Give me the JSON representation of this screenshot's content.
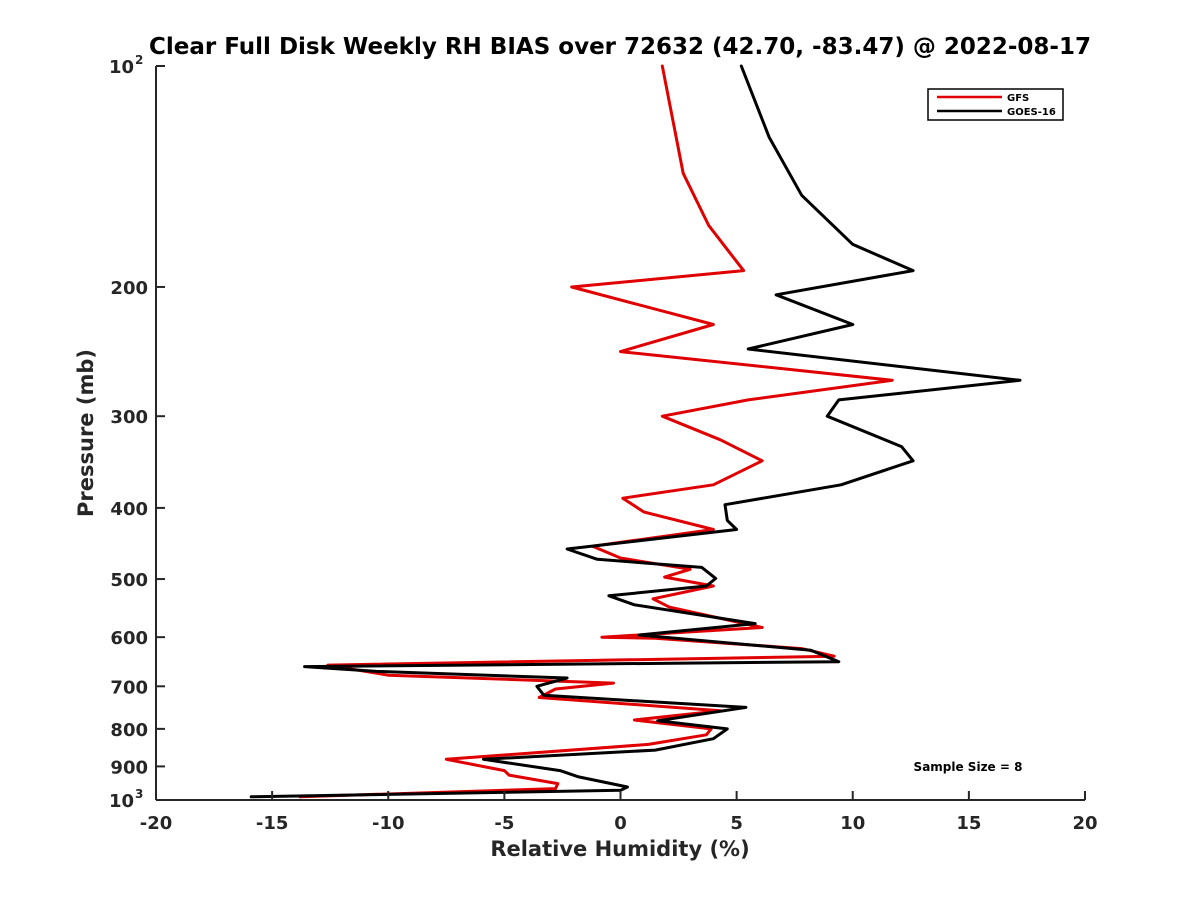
{
  "chart_data": {
    "type": "line",
    "title": "Clear Full Disk Weekly RH BIAS over 72632 (42.70, -83.47) @ 2022-08-17",
    "xlabel": "Relative Humidity (%)",
    "ylabel": "Pressure (mb)",
    "xlim": [
      -20,
      20
    ],
    "ylim": [
      100,
      1000
    ],
    "y_scale": "log",
    "y_reversed": true,
    "x_ticks": [
      -20,
      -15,
      -10,
      -5,
      0,
      5,
      10,
      15,
      20
    ],
    "x_tick_labels": [
      "-20",
      "-15",
      "-10",
      "-5",
      "0",
      "5",
      "10",
      "15",
      "20"
    ],
    "y_ticks": [
      100,
      200,
      300,
      400,
      500,
      600,
      700,
      800,
      900,
      1000
    ],
    "y_tick_labels": [
      "",
      "200",
      "300",
      "400",
      "500",
      "600",
      "700",
      "800",
      "900",
      ""
    ],
    "y_tick_base_labels": [
      {
        "value": 100,
        "base": "10",
        "exp": "2"
      },
      {
        "value": 1000,
        "base": "10",
        "exp": "3"
      }
    ],
    "grid": false,
    "legend": {
      "position": "top-right",
      "entries": [
        "GFS",
        "GOES-16"
      ]
    },
    "annotation": "Sample Size = 8",
    "series": [
      {
        "name": "GFS",
        "color": "#e00000",
        "points": [
          [
            1.8,
            100
          ],
          [
            2.7,
            140
          ],
          [
            3.8,
            165
          ],
          [
            5.3,
            190
          ],
          [
            -2.1,
            200
          ],
          [
            4.0,
            225
          ],
          [
            0.0,
            245
          ],
          [
            11.7,
            268
          ],
          [
            5.5,
            285
          ],
          [
            1.8,
            300
          ],
          [
            4.3,
            323
          ],
          [
            6.1,
            345
          ],
          [
            4.0,
            372
          ],
          [
            0.1,
            388
          ],
          [
            1.0,
            405
          ],
          [
            4.0,
            428
          ],
          [
            -1.2,
            451
          ],
          [
            0.0,
            468
          ],
          [
            3.0,
            485
          ],
          [
            1.9,
            497
          ],
          [
            4.0,
            511
          ],
          [
            1.4,
            532
          ],
          [
            2.1,
            546
          ],
          [
            6.1,
            582
          ],
          [
            -0.8,
            600
          ],
          [
            1.5,
            602
          ],
          [
            7.8,
            622
          ],
          [
            9.2,
            637
          ],
          [
            -12.6,
            655
          ],
          [
            -10.0,
            676
          ],
          [
            -0.3,
            693
          ],
          [
            -2.8,
            706
          ],
          [
            -3.5,
            725
          ],
          [
            4.3,
            756
          ],
          [
            0.6,
            778
          ],
          [
            3.9,
            800
          ],
          [
            3.7,
            815
          ],
          [
            1.2,
            840
          ],
          [
            -7.5,
            880
          ],
          [
            -5.0,
            912
          ],
          [
            -4.8,
            925
          ],
          [
            -2.7,
            950
          ],
          [
            -2.8,
            965
          ],
          [
            -13.8,
            990
          ]
        ]
      },
      {
        "name": "GOES-16",
        "color": "#000000",
        "points": [
          [
            5.2,
            100
          ],
          [
            6.4,
            125
          ],
          [
            7.8,
            150
          ],
          [
            10.0,
            175
          ],
          [
            12.6,
            190
          ],
          [
            6.7,
            205
          ],
          [
            10.0,
            225
          ],
          [
            5.5,
            243
          ],
          [
            17.2,
            268
          ],
          [
            9.4,
            285
          ],
          [
            8.9,
            300
          ],
          [
            12.1,
            330
          ],
          [
            12.6,
            345
          ],
          [
            9.5,
            372
          ],
          [
            4.5,
            396
          ],
          [
            4.6,
            416
          ],
          [
            5.0,
            428
          ],
          [
            -2.3,
            455
          ],
          [
            -1.0,
            470
          ],
          [
            3.5,
            482
          ],
          [
            4.1,
            499
          ],
          [
            3.7,
            511
          ],
          [
            -0.5,
            527
          ],
          [
            0.6,
            542
          ],
          [
            5.8,
            575
          ],
          [
            0.8,
            596
          ],
          [
            8.2,
            625
          ],
          [
            9.4,
            648
          ],
          [
            -13.6,
            658
          ],
          [
            -10.5,
            668
          ],
          [
            -2.3,
            682
          ],
          [
            -3.6,
            700
          ],
          [
            -3.3,
            720
          ],
          [
            5.4,
            748
          ],
          [
            1.6,
            780
          ],
          [
            4.6,
            800
          ],
          [
            4.0,
            825
          ],
          [
            1.5,
            855
          ],
          [
            -5.9,
            880
          ],
          [
            -2.6,
            912
          ],
          [
            -1.8,
            930
          ],
          [
            0.3,
            960
          ],
          [
            0.0,
            970
          ],
          [
            -15.9,
            990
          ]
        ]
      }
    ]
  }
}
